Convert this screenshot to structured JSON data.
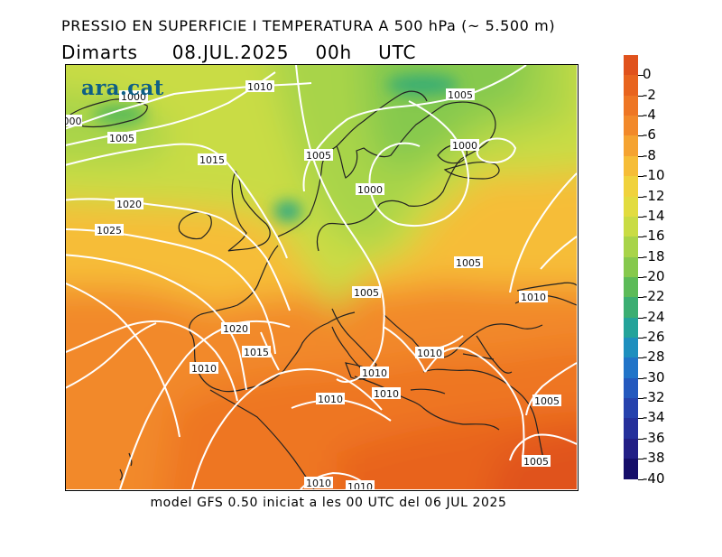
{
  "title": {
    "line1": "PRESSIO EN SUPERFICIE I TEMPERATURA A 500 hPa (~ 5.500 m)",
    "day": "Dimarts",
    "datetime": "08.JUL.2025 00h UTC"
  },
  "logo": "ara.cat",
  "credit": "model GFS 0.50 iniciat a les 00 UTC del 06 JUL 2025",
  "colorbar": {
    "labels": [
      "0",
      "-2",
      "-4",
      "-6",
      "-8",
      "-10",
      "-12",
      "-14",
      "-16",
      "-18",
      "-20",
      "-22",
      "-24",
      "-26",
      "-28",
      "-30",
      "-32",
      "-34",
      "-36",
      "-38",
      "-40"
    ],
    "colors": [
      "#e0521c",
      "#e8641e",
      "#ee7624",
      "#f2892a",
      "#f5a331",
      "#f6bd37",
      "#f0d23c",
      "#e2dc3f",
      "#c9dc44",
      "#a8d449",
      "#86c94d",
      "#5cbb58",
      "#3bae72",
      "#24a39a",
      "#1e8fbe",
      "#2174c8",
      "#2459be",
      "#2642ad",
      "#25309b",
      "#221f86",
      "#150e6a"
    ]
  },
  "isobar_labels": [
    "1010",
    "1000",
    "1005",
    "1005",
    "1015",
    "1020",
    "1025",
    "1005",
    "1000",
    "1000",
    "1005",
    "1005",
    "1010",
    "1020",
    "1015",
    "1010",
    "1010",
    "1010",
    "1010",
    "1010",
    "1005",
    "1005",
    "1010",
    "1010",
    "000"
  ]
}
